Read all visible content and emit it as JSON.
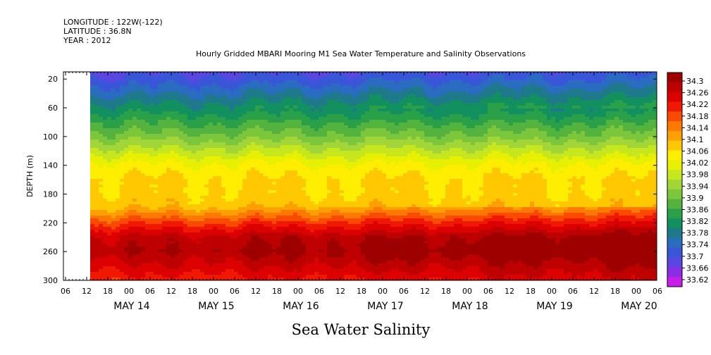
{
  "header": {
    "longitude": "LONGITUDE : 122W(-122)",
    "latitude": "LATITUDE : 36.8N",
    "year": "YEAR : 2012"
  },
  "chart_data": {
    "type": "heatmap",
    "title": "Hourly Gridded MBARI Mooring M1 Sea Water Temperature and Salinity Observations",
    "xlabel": "Sea Water Salinity",
    "ylabel": "DEPTH (m)",
    "ylim": [
      300,
      10
    ],
    "yticks": [
      20,
      60,
      100,
      140,
      180,
      220,
      260,
      300
    ],
    "hour_ticks": [
      "06",
      "12",
      "18",
      "00",
      "06",
      "12",
      "18",
      "00",
      "06",
      "12",
      "18",
      "00",
      "06",
      "12",
      "18",
      "00",
      "06",
      "12",
      "18",
      "00",
      "06",
      "12",
      "18",
      "00",
      "06",
      "12",
      "18",
      "00",
      "06",
      "12",
      "18",
      "00"
    ],
    "day_labels": [
      "MAY 14",
      "MAY 15",
      "MAY 16",
      "MAY 17",
      "MAY 18",
      "MAY 19",
      "MAY 20"
    ],
    "data_start": "MAY 14 10:00",
    "colorbar_labels": [
      "34.3",
      "34.26",
      "34.22",
      "34.18",
      "34.14",
      "34.1",
      "34.06",
      "34.02",
      "33.98",
      "33.94",
      "33.9",
      "33.86",
      "33.82",
      "33.78",
      "33.74",
      "33.7",
      "33.66",
      "33.62"
    ],
    "colors": [
      "#9e0000",
      "#be0000",
      "#dc0000",
      "#f01800",
      "#fa4a00",
      "#ff7800",
      "#ffa000",
      "#ffc800",
      "#ffee00",
      "#e6f000",
      "#c6e61e",
      "#a2d638",
      "#7cc63c",
      "#54b23e",
      "#2aa048",
      "#129060",
      "#1e7a8a",
      "#2a6cc0",
      "#3a56d8",
      "#5a46e0",
      "#8a2ee6",
      "#c81ee8"
    ],
    "depth_profile": [
      {
        "depth": 10,
        "salinity": 33.7
      },
      {
        "depth": 20,
        "salinity": 33.72
      },
      {
        "depth": 40,
        "salinity": 33.77
      },
      {
        "depth": 60,
        "salinity": 33.82
      },
      {
        "depth": 80,
        "salinity": 33.87
      },
      {
        "depth": 100,
        "salinity": 33.92
      },
      {
        "depth": 120,
        "salinity": 33.98
      },
      {
        "depth": 140,
        "salinity": 34.04
      },
      {
        "depth": 160,
        "salinity": 34.07
      },
      {
        "depth": 180,
        "salinity": 34.07
      },
      {
        "depth": 200,
        "salinity": 34.09
      },
      {
        "depth": 220,
        "salinity": 34.18
      },
      {
        "depth": 240,
        "salinity": 34.26
      },
      {
        "depth": 260,
        "salinity": 34.28
      },
      {
        "depth": 280,
        "salinity": 34.24
      },
      {
        "depth": 300,
        "salinity": 34.2
      }
    ]
  }
}
